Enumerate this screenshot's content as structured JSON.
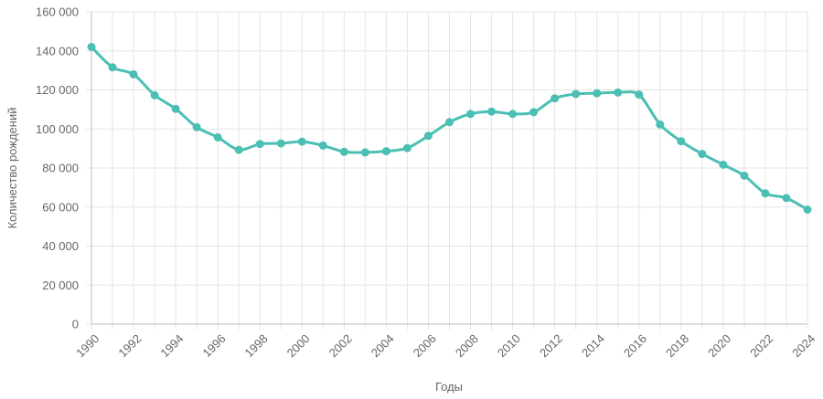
{
  "chart_data": {
    "type": "line",
    "xlabel": "Годы",
    "ylabel": "Количество рождений",
    "ylim": [
      0,
      160000
    ],
    "y_ticks": [
      0,
      20000,
      40000,
      60000,
      80000,
      100000,
      120000,
      140000,
      160000
    ],
    "y_tick_labels": [
      "0",
      "20 000",
      "40 000",
      "60 000",
      "80 000",
      "100 000",
      "120 000",
      "140 000",
      "160 000"
    ],
    "xlim": [
      1990,
      2024
    ],
    "x_tick_labels": [
      "1990",
      "1992",
      "1994",
      "1996",
      "1998",
      "2000",
      "2002",
      "2004",
      "2006",
      "2008",
      "2010",
      "2012",
      "2014",
      "2016",
      "2018",
      "2020",
      "2022",
      "2024"
    ],
    "grid": true,
    "legend": "none",
    "colors": {
      "line": "#4bbfb3",
      "grid": "#e5e5e5",
      "axis": "#bdbdbd",
      "text": "#666666"
    },
    "series": [
      {
        "x": [
          1990,
          1991,
          1992,
          1993,
          1994,
          1995,
          1996,
          1997,
          1998,
          1999,
          2000,
          2001,
          2002,
          2003,
          2004,
          2005,
          2006,
          2007,
          2008,
          2009,
          2010,
          2011,
          2012,
          2013,
          2014,
          2015,
          2016,
          2017,
          2018,
          2019,
          2020,
          2021,
          2022,
          2023,
          2024
        ],
        "values": [
          142000,
          131600,
          128000,
          117300,
          110300,
          100900,
          95700,
          89300,
          92300,
          92600,
          93500,
          91500,
          88300,
          88000,
          88600,
          90200,
          96500,
          103500,
          107700,
          108900,
          107700,
          108600,
          115700,
          117900,
          118300,
          118700,
          117600,
          102300,
          93700,
          87200,
          81700,
          76100,
          67000,
          64600,
          58700
        ]
      }
    ]
  }
}
